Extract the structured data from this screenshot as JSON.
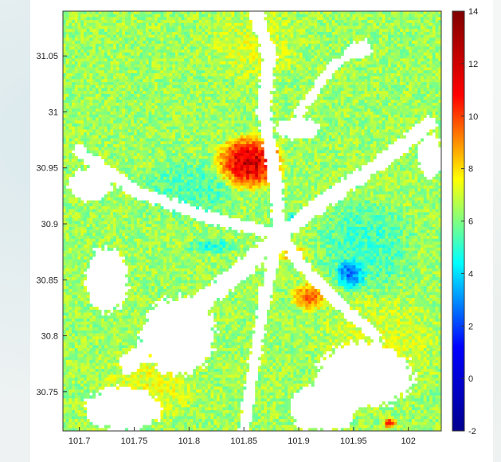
{
  "chart_data": {
    "type": "heatmap",
    "title": "",
    "xlabel": "",
    "ylabel": "",
    "xlim": [
      101.685,
      102.03
    ],
    "ylim": [
      30.715,
      31.09
    ],
    "x_ticks": [
      101.7,
      101.75,
      101.8,
      101.85,
      101.9,
      101.95,
      102
    ],
    "x_tick_labels": [
      "101.7",
      "101.75",
      "101.8",
      "101.85",
      "101.9",
      "101.95",
      "102"
    ],
    "y_ticks": [
      30.75,
      30.8,
      30.85,
      30.9,
      30.95,
      31,
      31.05
    ],
    "y_tick_labels": [
      "30.75",
      "30.8",
      "30.85",
      "30.9",
      "30.95",
      "31",
      "31.05"
    ],
    "colorbar": {
      "colormap": "jet",
      "range": [
        -2,
        14
      ],
      "ticks": [
        -2,
        0,
        2,
        4,
        6,
        8,
        10,
        12,
        14
      ],
      "tick_labels": [
        "-2",
        "0",
        "2",
        "4",
        "6",
        "8",
        "10",
        "12",
        "14"
      ],
      "colors": [
        "#00008f",
        "#0000ff",
        "#00ffff",
        "#ffff00",
        "#ff0000",
        "#800000"
      ]
    },
    "base_value": 6.5,
    "missing_value_color": "#ffffff",
    "regions": [
      {
        "label": "high anomaly",
        "center": [
          101.855,
          30.955
        ],
        "radius": [
          0.028,
          0.022
        ],
        "value": 12.8
      },
      {
        "label": "moderate anomaly",
        "center": [
          101.91,
          30.835
        ],
        "radius": [
          0.015,
          0.012
        ],
        "value": 10.2
      },
      {
        "label": "moderate anomaly",
        "center": [
          101.895,
          30.873
        ],
        "radius": [
          0.012,
          0.008
        ],
        "value": 9.2
      },
      {
        "label": "low anomaly",
        "center": [
          101.947,
          30.855
        ],
        "radius": [
          0.012,
          0.012
        ],
        "value": 2.8
      },
      {
        "label": "low anomaly",
        "center": [
          101.9,
          30.905
        ],
        "radius": [
          0.012,
          0.006
        ],
        "value": 4.0
      },
      {
        "label": "low anomaly",
        "center": [
          101.82,
          30.88
        ],
        "radius": [
          0.02,
          0.006
        ],
        "value": 4.5
      },
      {
        "label": "cool band",
        "center": [
          101.8,
          30.93
        ],
        "radius": [
          0.04,
          0.025
        ],
        "value": 5.2
      },
      {
        "label": "cool band",
        "center": [
          101.96,
          30.88
        ],
        "radius": [
          0.04,
          0.04
        ],
        "value": 5.0
      },
      {
        "label": "warm band",
        "center": [
          101.765,
          30.755
        ],
        "radius": [
          0.04,
          0.03
        ],
        "value": 7.6
      },
      {
        "label": "warm band",
        "center": [
          101.975,
          30.795
        ],
        "radius": [
          0.05,
          0.04
        ],
        "value": 7.4
      },
      {
        "label": "warm band",
        "center": [
          101.86,
          31.06
        ],
        "radius": [
          0.04,
          0.03
        ],
        "value": 7.4
      },
      {
        "label": "hot spot",
        "center": [
          101.983,
          30.722
        ],
        "radius": [
          0.006,
          0.004
        ],
        "value": 11.5
      }
    ],
    "no_data_channels": [
      {
        "points": [
          [
            101.862,
            31.09
          ],
          [
            101.873,
            31.05
          ],
          [
            101.868,
            31.0
          ],
          [
            101.878,
            30.94
          ],
          [
            101.883,
            30.89
          ]
        ],
        "halfwidth": 0.006
      },
      {
        "points": [
          [
            101.883,
            30.89
          ],
          [
            101.82,
            30.905
          ],
          [
            101.75,
            30.93
          ],
          [
            101.7,
            30.965
          ]
        ],
        "halfwidth": 0.005
      },
      {
        "points": [
          [
            101.883,
            30.89
          ],
          [
            101.93,
            30.925
          ],
          [
            101.975,
            30.955
          ],
          [
            102.02,
            30.99
          ]
        ],
        "halfwidth": 0.006
      },
      {
        "points": [
          [
            101.883,
            30.89
          ],
          [
            101.85,
            30.86
          ],
          [
            101.81,
            30.83
          ],
          [
            101.775,
            30.8
          ],
          [
            101.745,
            30.775
          ]
        ],
        "halfwidth": 0.008
      },
      {
        "points": [
          [
            101.883,
            30.89
          ],
          [
            101.905,
            30.86
          ],
          [
            101.935,
            30.83
          ],
          [
            101.97,
            30.8
          ]
        ],
        "halfwidth": 0.005
      },
      {
        "points": [
          [
            101.883,
            30.89
          ],
          [
            101.87,
            30.84
          ],
          [
            101.86,
            30.78
          ],
          [
            101.85,
            30.715
          ]
        ],
        "halfwidth": 0.005
      },
      {
        "points": [
          [
            101.9,
            31.0
          ],
          [
            101.93,
            31.04
          ],
          [
            101.96,
            31.06
          ]
        ],
        "halfwidth": 0.004
      }
    ],
    "no_data_blobs": [
      {
        "center": [
          101.71,
          30.935
        ],
        "radius": [
          0.02,
          0.015
        ]
      },
      {
        "center": [
          101.79,
          30.8
        ],
        "radius": [
          0.035,
          0.035
        ]
      },
      {
        "center": [
          101.725,
          30.85
        ],
        "radius": [
          0.02,
          0.03
        ]
      },
      {
        "center": [
          101.96,
          30.765
        ],
        "radius": [
          0.045,
          0.03
        ]
      },
      {
        "center": [
          101.93,
          30.74
        ],
        "radius": [
          0.025,
          0.025
        ]
      },
      {
        "center": [
          101.74,
          30.735
        ],
        "radius": [
          0.035,
          0.02
        ]
      },
      {
        "center": [
          101.9,
          30.985
        ],
        "radius": [
          0.02,
          0.01
        ]
      },
      {
        "center": [
          101.955,
          31.055
        ],
        "radius": [
          0.012,
          0.008
        ]
      },
      {
        "center": [
          102.02,
          30.96
        ],
        "radius": [
          0.012,
          0.02
        ]
      },
      {
        "center": [
          101.91,
          30.735
        ],
        "radius": [
          0.018,
          0.02
        ]
      }
    ]
  }
}
